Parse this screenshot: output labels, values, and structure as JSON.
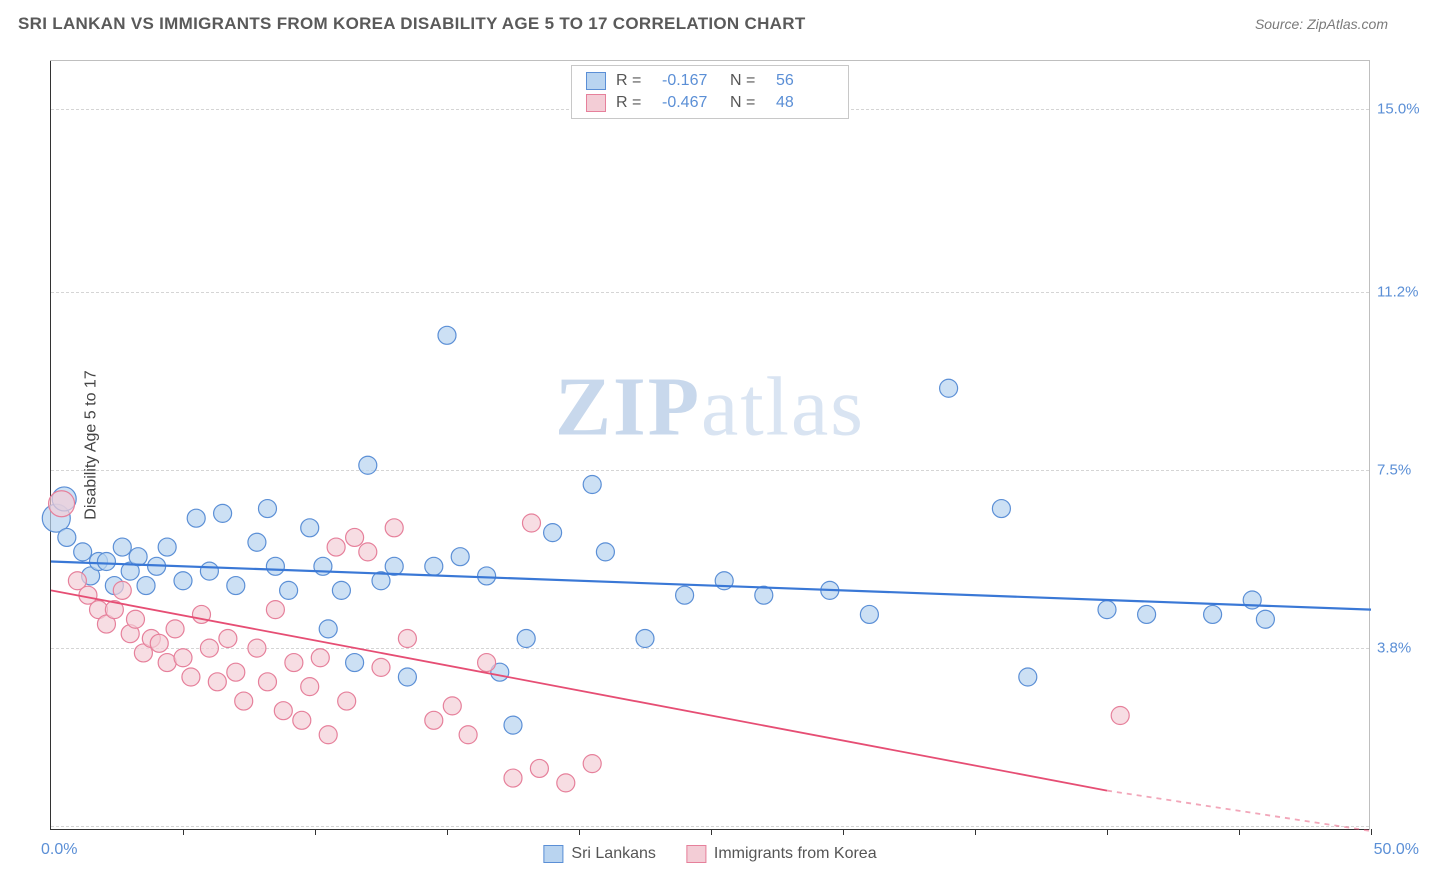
{
  "header": {
    "title": "SRI LANKAN VS IMMIGRANTS FROM KOREA DISABILITY AGE 5 TO 17 CORRELATION CHART",
    "source": "Source: ZipAtlas.com"
  },
  "watermark": {
    "zip": "ZIP",
    "atlas": "atlas"
  },
  "chart": {
    "type": "scatter",
    "y_axis_title": "Disability Age 5 to 17",
    "plot_bg": "#ffffff",
    "grid_color": "#d5d5d5",
    "axis_color": "#333333",
    "tick_label_color": "#5b8fd6",
    "xlim": [
      0,
      50
    ],
    "ylim": [
      0,
      16
    ],
    "xticks_major": [
      0,
      5,
      10,
      15,
      20,
      25,
      30,
      35,
      40,
      45,
      50
    ],
    "xlabel_min": "0.0%",
    "xlabel_max": "50.0%",
    "ygrid": [
      {
        "value": 3.8,
        "label": "3.8%"
      },
      {
        "value": 7.5,
        "label": "7.5%"
      },
      {
        "value": 11.2,
        "label": "11.2%"
      },
      {
        "value": 15.0,
        "label": "15.0%"
      },
      {
        "value": 0.1,
        "label": null
      }
    ],
    "series": [
      {
        "key": "sri_lankans",
        "label": "Sri Lankans",
        "color_fill": "#b9d4f0",
        "color_stroke": "#5b8fd6",
        "marker_radius": 9,
        "marker_opacity": 0.72,
        "stats": {
          "R": "-0.167",
          "N": "56"
        },
        "regression": {
          "x1": 0,
          "y1": 5.6,
          "x2": 50,
          "y2": 4.6,
          "color": "#3a78d6",
          "width": 2.2,
          "dash_after_x": null
        },
        "points": [
          {
            "x": 0.2,
            "y": 6.5,
            "r": 14
          },
          {
            "x": 0.5,
            "y": 6.9,
            "r": 12
          },
          {
            "x": 0.6,
            "y": 6.1
          },
          {
            "x": 1.2,
            "y": 5.8
          },
          {
            "x": 1.5,
            "y": 5.3
          },
          {
            "x": 1.8,
            "y": 5.6
          },
          {
            "x": 2.1,
            "y": 5.6
          },
          {
            "x": 2.4,
            "y": 5.1
          },
          {
            "x": 2.7,
            "y": 5.9
          },
          {
            "x": 3.0,
            "y": 5.4
          },
          {
            "x": 3.3,
            "y": 5.7
          },
          {
            "x": 3.6,
            "y": 5.1
          },
          {
            "x": 4.0,
            "y": 5.5
          },
          {
            "x": 4.4,
            "y": 5.9
          },
          {
            "x": 5.0,
            "y": 5.2
          },
          {
            "x": 5.5,
            "y": 6.5
          },
          {
            "x": 6.0,
            "y": 5.4
          },
          {
            "x": 6.5,
            "y": 6.6
          },
          {
            "x": 7.0,
            "y": 5.1
          },
          {
            "x": 7.8,
            "y": 6.0
          },
          {
            "x": 8.2,
            "y": 6.7
          },
          {
            "x": 8.5,
            "y": 5.5
          },
          {
            "x": 9.0,
            "y": 5.0
          },
          {
            "x": 9.8,
            "y": 6.3
          },
          {
            "x": 10.3,
            "y": 5.5
          },
          {
            "x": 10.5,
            "y": 4.2
          },
          {
            "x": 11.0,
            "y": 5.0
          },
          {
            "x": 11.5,
            "y": 3.5
          },
          {
            "x": 12.0,
            "y": 7.6
          },
          {
            "x": 12.5,
            "y": 5.2
          },
          {
            "x": 13.0,
            "y": 5.5
          },
          {
            "x": 13.5,
            "y": 3.2
          },
          {
            "x": 14.5,
            "y": 5.5
          },
          {
            "x": 15.0,
            "y": 10.3
          },
          {
            "x": 15.5,
            "y": 5.7
          },
          {
            "x": 16.5,
            "y": 5.3
          },
          {
            "x": 17.0,
            "y": 3.3
          },
          {
            "x": 17.5,
            "y": 2.2
          },
          {
            "x": 18.0,
            "y": 4.0
          },
          {
            "x": 19.0,
            "y": 6.2
          },
          {
            "x": 20.5,
            "y": 7.2
          },
          {
            "x": 21.0,
            "y": 5.8
          },
          {
            "x": 22.5,
            "y": 4.0
          },
          {
            "x": 24.0,
            "y": 4.9
          },
          {
            "x": 25.5,
            "y": 5.2
          },
          {
            "x": 27.0,
            "y": 4.9
          },
          {
            "x": 29.5,
            "y": 5.0
          },
          {
            "x": 31.0,
            "y": 4.5
          },
          {
            "x": 34.0,
            "y": 9.2
          },
          {
            "x": 36.0,
            "y": 6.7
          },
          {
            "x": 37.0,
            "y": 3.2
          },
          {
            "x": 40.0,
            "y": 4.6
          },
          {
            "x": 41.5,
            "y": 4.5
          },
          {
            "x": 44.0,
            "y": 4.5
          },
          {
            "x": 45.5,
            "y": 4.8
          },
          {
            "x": 46.0,
            "y": 4.4
          }
        ]
      },
      {
        "key": "immigrants_korea",
        "label": "Immigrants from Korea",
        "color_fill": "#f3cdd6",
        "color_stroke": "#e6809b",
        "marker_radius": 9,
        "marker_opacity": 0.68,
        "stats": {
          "R": "-0.467",
          "N": "48"
        },
        "regression": {
          "x1": 0,
          "y1": 5.0,
          "x2": 50,
          "y2": -0.2,
          "color": "#e64e74",
          "width": 1.8,
          "dash_after_x": 40
        },
        "points": [
          {
            "x": 0.4,
            "y": 6.8,
            "r": 13
          },
          {
            "x": 1.0,
            "y": 5.2
          },
          {
            "x": 1.4,
            "y": 4.9
          },
          {
            "x": 1.8,
            "y": 4.6
          },
          {
            "x": 2.1,
            "y": 4.3
          },
          {
            "x": 2.4,
            "y": 4.6
          },
          {
            "x": 2.7,
            "y": 5.0
          },
          {
            "x": 3.0,
            "y": 4.1
          },
          {
            "x": 3.2,
            "y": 4.4
          },
          {
            "x": 3.5,
            "y": 3.7
          },
          {
            "x": 3.8,
            "y": 4.0
          },
          {
            "x": 4.1,
            "y": 3.9
          },
          {
            "x": 4.4,
            "y": 3.5
          },
          {
            "x": 4.7,
            "y": 4.2
          },
          {
            "x": 5.0,
            "y": 3.6
          },
          {
            "x": 5.3,
            "y": 3.2
          },
          {
            "x": 5.7,
            "y": 4.5
          },
          {
            "x": 6.0,
            "y": 3.8
          },
          {
            "x": 6.3,
            "y": 3.1
          },
          {
            "x": 6.7,
            "y": 4.0
          },
          {
            "x": 7.0,
            "y": 3.3
          },
          {
            "x": 7.3,
            "y": 2.7
          },
          {
            "x": 7.8,
            "y": 3.8
          },
          {
            "x": 8.2,
            "y": 3.1
          },
          {
            "x": 8.5,
            "y": 4.6
          },
          {
            "x": 8.8,
            "y": 2.5
          },
          {
            "x": 9.2,
            "y": 3.5
          },
          {
            "x": 9.5,
            "y": 2.3
          },
          {
            "x": 9.8,
            "y": 3.0
          },
          {
            "x": 10.2,
            "y": 3.6
          },
          {
            "x": 10.5,
            "y": 2.0
          },
          {
            "x": 10.8,
            "y": 5.9
          },
          {
            "x": 11.2,
            "y": 2.7
          },
          {
            "x": 11.5,
            "y": 6.1
          },
          {
            "x": 12.0,
            "y": 5.8
          },
          {
            "x": 12.5,
            "y": 3.4
          },
          {
            "x": 13.0,
            "y": 6.3
          },
          {
            "x": 13.5,
            "y": 4.0
          },
          {
            "x": 14.5,
            "y": 2.3
          },
          {
            "x": 15.2,
            "y": 2.6
          },
          {
            "x": 15.8,
            "y": 2.0
          },
          {
            "x": 16.5,
            "y": 3.5
          },
          {
            "x": 17.5,
            "y": 1.1
          },
          {
            "x": 18.2,
            "y": 6.4
          },
          {
            "x": 18.5,
            "y": 1.3
          },
          {
            "x": 19.5,
            "y": 1.0
          },
          {
            "x": 20.5,
            "y": 1.4
          },
          {
            "x": 40.5,
            "y": 2.4
          }
        ]
      }
    ]
  },
  "legend_top": {
    "r_label": "R =",
    "n_label": "N ="
  },
  "legend_bottom": {}
}
